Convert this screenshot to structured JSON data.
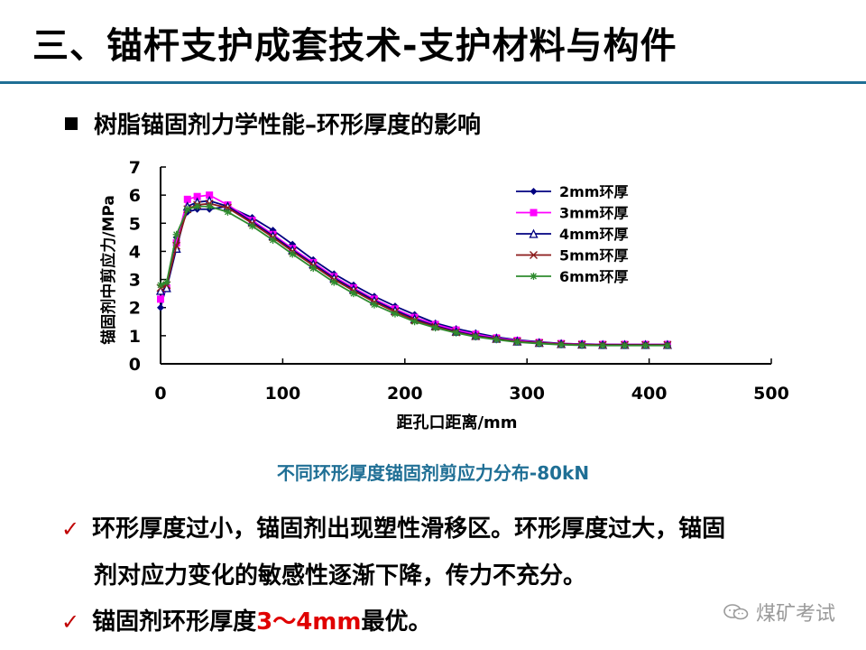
{
  "title": "三、锚杆支护成套技术-支护材料与构件",
  "subtitle": "树脂锚固剂力学性能–环形厚度的影响",
  "caption": "不同环形厚度锚固剂剪应力分布-80kN",
  "points": {
    "p1": "环形厚度过小，锚固剂出现塑性滑移区。环形厚度过大，锚固",
    "p2": "剂对应力变化的敏感性逐渐下降，传力不充分。",
    "p3_before": "锚固剂环形厚度",
    "p3_highlight": "3～4mm",
    "p3_after": "最优。"
  },
  "watermark": "煤矿考试",
  "icons": {
    "bullet": "square-bullet-icon",
    "check": "check-mark-icon",
    "watermark": "wechat-icon"
  },
  "colors": {
    "accent": "#1f6f95",
    "check": "#c00000",
    "highlight": "#e00000"
  },
  "chart_data": {
    "type": "line",
    "xlabel": "距孔口距离/mm",
    "ylabel": "锚固剂中剪应力/MPa",
    "xlim": [
      0,
      500
    ],
    "ylim": [
      0,
      7
    ],
    "xticks": [
      0,
      100,
      200,
      300,
      400,
      500
    ],
    "yticks": [
      0,
      1,
      2,
      3,
      4,
      5,
      6,
      7
    ],
    "grid": false,
    "legend_position": "top-right",
    "x": [
      0,
      5,
      13,
      22,
      30,
      40,
      55,
      75,
      92,
      108,
      125,
      142,
      158,
      175,
      192,
      208,
      225,
      242,
      258,
      275,
      292,
      310,
      328,
      345,
      362,
      380,
      397,
      415
    ],
    "series": [
      {
        "name": "2mm环厚",
        "color": "#000080",
        "marker": "diamond",
        "values": [
          2.0,
          2.8,
          4.5,
          5.4,
          5.5,
          5.5,
          5.6,
          5.2,
          4.75,
          4.25,
          3.7,
          3.2,
          2.8,
          2.4,
          2.05,
          1.75,
          1.45,
          1.25,
          1.1,
          0.95,
          0.85,
          0.78,
          0.72,
          0.7,
          0.69,
          0.68,
          0.68,
          0.68
        ]
      },
      {
        "name": "3mm环厚",
        "color": "#ff00ff",
        "marker": "square",
        "values": [
          2.3,
          2.7,
          4.3,
          5.85,
          5.95,
          6.0,
          5.65,
          5.1,
          4.6,
          4.1,
          3.6,
          3.1,
          2.7,
          2.3,
          1.95,
          1.65,
          1.4,
          1.2,
          1.05,
          0.92,
          0.83,
          0.76,
          0.72,
          0.7,
          0.69,
          0.69,
          0.69,
          0.69
        ]
      },
      {
        "name": "4mm环厚",
        "color": "#000080",
        "marker": "triangle-open",
        "values": [
          2.6,
          2.7,
          4.1,
          5.6,
          5.75,
          5.8,
          5.6,
          5.05,
          4.55,
          4.05,
          3.55,
          3.05,
          2.65,
          2.25,
          1.9,
          1.6,
          1.35,
          1.15,
          1.0,
          0.9,
          0.8,
          0.75,
          0.71,
          0.69,
          0.68,
          0.68,
          0.68,
          0.68
        ]
      },
      {
        "name": "5mm环厚",
        "color": "#8b1a1a",
        "marker": "x",
        "values": [
          2.7,
          2.8,
          4.2,
          5.5,
          5.65,
          5.7,
          5.55,
          5.0,
          4.5,
          4.0,
          3.5,
          3.0,
          2.6,
          2.2,
          1.85,
          1.55,
          1.32,
          1.12,
          0.98,
          0.88,
          0.79,
          0.74,
          0.7,
          0.68,
          0.67,
          0.67,
          0.67,
          0.67
        ]
      },
      {
        "name": "6mm环厚",
        "color": "#2e8b2e",
        "marker": "asterisk",
        "values": [
          2.8,
          2.9,
          4.6,
          5.5,
          5.6,
          5.6,
          5.4,
          4.9,
          4.4,
          3.9,
          3.4,
          2.9,
          2.5,
          2.1,
          1.78,
          1.5,
          1.28,
          1.1,
          0.96,
          0.86,
          0.77,
          0.72,
          0.68,
          0.66,
          0.65,
          0.65,
          0.65,
          0.65
        ]
      }
    ]
  }
}
